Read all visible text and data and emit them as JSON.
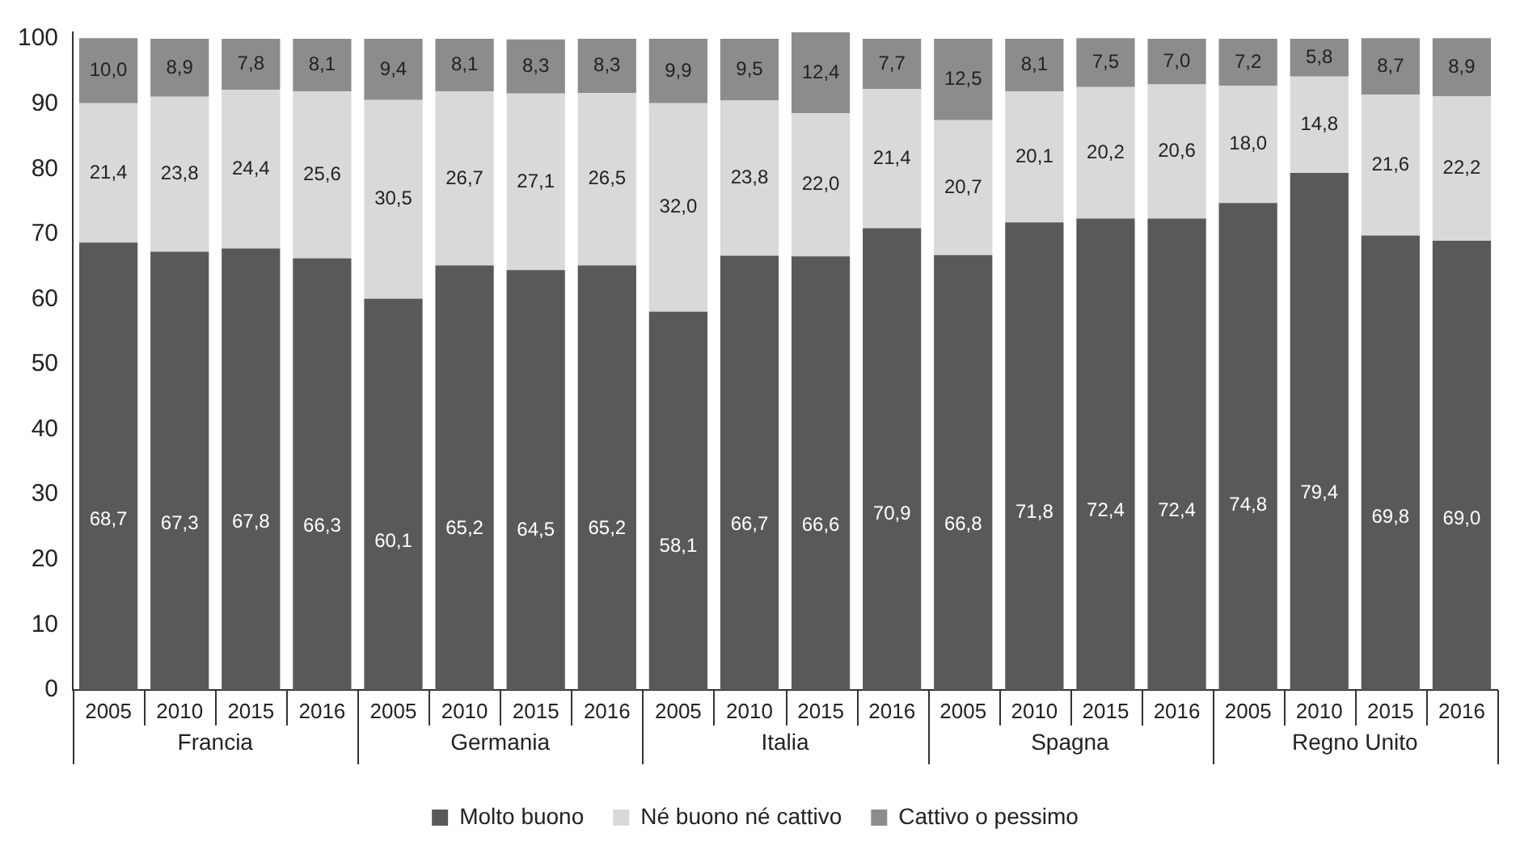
{
  "chart_data": {
    "type": "bar",
    "stacked": true,
    "categories": [
      "2005",
      "2010",
      "2015",
      "2016",
      "2005",
      "2010",
      "2015",
      "2016",
      "2005",
      "2010",
      "2015",
      "2016",
      "2005",
      "2010",
      "2015",
      "2016",
      "2005",
      "2010",
      "2015",
      "2016"
    ],
    "series": [
      {
        "name": "Molto buono",
        "color": "#595959",
        "values": [
          68.7,
          67.3,
          67.8,
          66.3,
          60.1,
          65.2,
          64.5,
          65.2,
          58.1,
          66.7,
          66.6,
          70.9,
          66.8,
          71.8,
          72.4,
          72.4,
          74.8,
          79.4,
          69.8,
          69.0
        ],
        "value_labels": [
          "68,7",
          "67,3",
          "67,8",
          "66,3",
          "60,1",
          "65,2",
          "64,5",
          "65,2",
          "58,1",
          "66,7",
          "66,6",
          "70,9",
          "66,8",
          "71,8",
          "72,4",
          "72,4",
          "74,8",
          "79,4",
          "69,8",
          "69,0"
        ]
      },
      {
        "name": "Né buono né cattivo",
        "color": "#d9d9d9",
        "values": [
          21.4,
          23.8,
          24.4,
          25.6,
          30.5,
          26.7,
          27.1,
          26.5,
          32.0,
          23.8,
          22.0,
          21.4,
          20.7,
          20.1,
          20.2,
          20.6,
          18.0,
          14.8,
          21.6,
          22.2
        ],
        "value_labels": [
          "21,4",
          "23,8",
          "24,4",
          "25,6",
          "30,5",
          "26,7",
          "27,1",
          "26,5",
          "32,0",
          "23,8",
          "22,0",
          "21,4",
          "20,7",
          "20,1",
          "20,2",
          "20,6",
          "18,0",
          "14,8",
          "21,6",
          "22,2"
        ]
      },
      {
        "name": "Cattivo o pessimo",
        "color": "#8c8c8c",
        "values": [
          10.0,
          8.9,
          7.8,
          8.1,
          9.4,
          8.1,
          8.3,
          8.3,
          9.9,
          9.5,
          12.4,
          7.7,
          12.5,
          8.1,
          7.5,
          7.0,
          7.2,
          5.8,
          8.7,
          8.9
        ],
        "value_labels": [
          "10,0",
          "8,9",
          "7,8",
          "8,1",
          "9,4",
          "8,1",
          "8,3",
          "8,3",
          "9,9",
          "9,5",
          "12,4",
          "7,7",
          "12,5",
          "8,1",
          "7,5",
          "7,0",
          "7,2",
          "5,8",
          "8,7",
          "8,9"
        ]
      }
    ],
    "annotations": [
      "Francia",
      "Germania",
      "Italia",
      "Spagna",
      "Regno Unito"
    ],
    "ylim": [
      0,
      101
    ],
    "yticks": [
      0,
      10,
      20,
      30,
      40,
      50,
      60,
      70,
      80,
      90,
      100
    ],
    "grid": false,
    "legend": "bottom"
  }
}
